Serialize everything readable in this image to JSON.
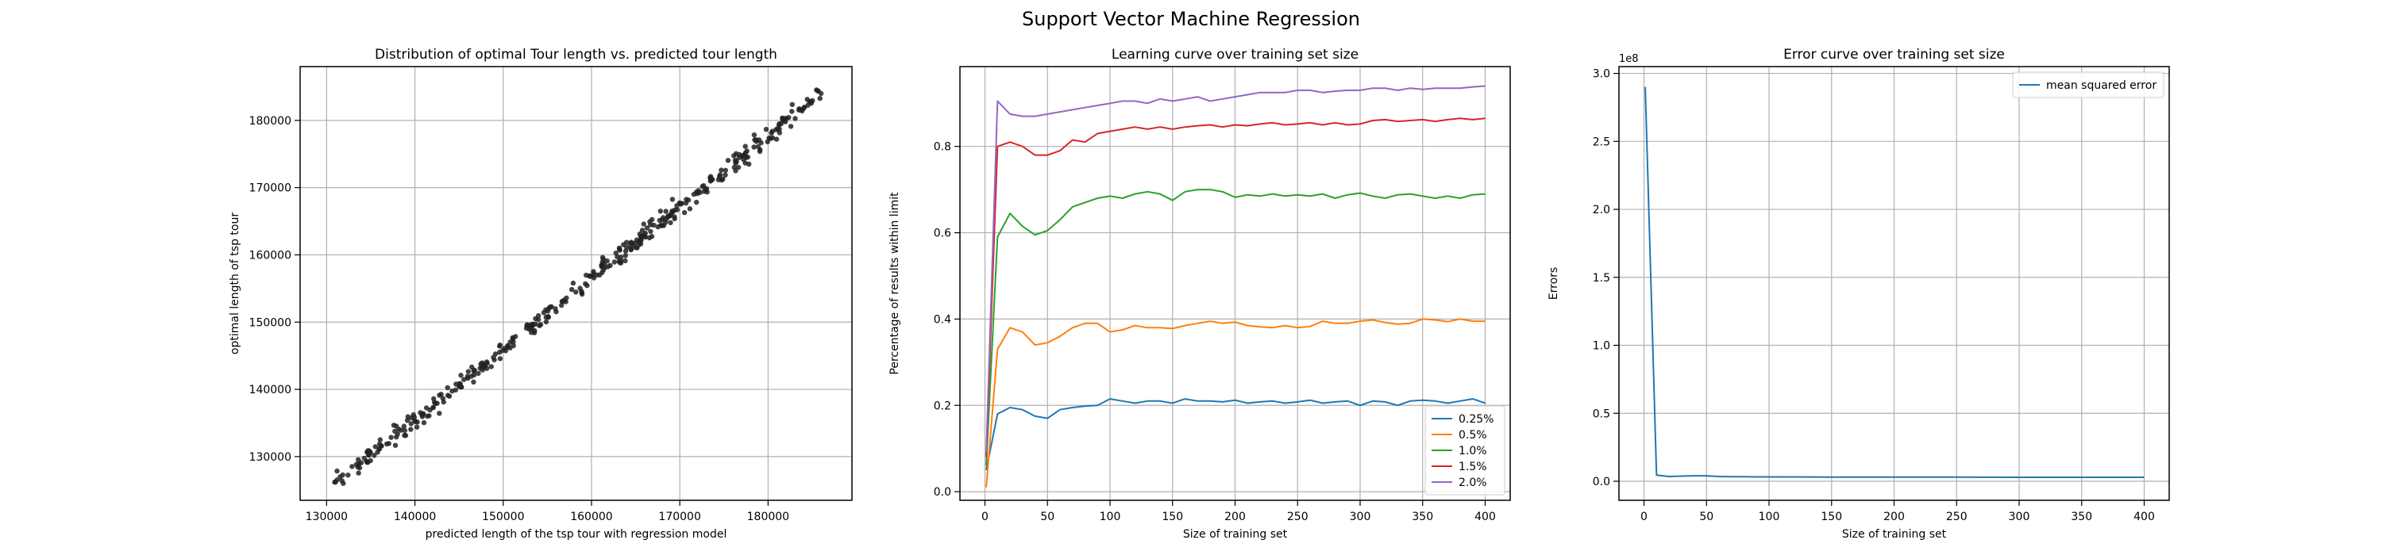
{
  "figure": {
    "suptitle": "Support Vector Machine Regression"
  },
  "colors": {
    "tab_blue": "#1f77b4",
    "tab_orange": "#ff7f0e",
    "tab_green": "#2ca02c",
    "tab_red": "#d62728",
    "tab_purple": "#9467bd",
    "scatter": "#222222",
    "grid": "#b0b0b0",
    "axes": "#000000"
  },
  "chart_data": [
    {
      "type": "scatter",
      "title": "Distribution of optimal Tour length vs. predicted tour length",
      "xlabel": "predicted length of the tsp tour with regression model",
      "ylabel": "optimal length of tsp tour",
      "xlim": [
        127000,
        189500
      ],
      "ylim": [
        123500,
        188000
      ],
      "xticks": [
        130000,
        140000,
        150000,
        160000,
        170000,
        180000
      ],
      "yticks": [
        130000,
        140000,
        150000,
        160000,
        170000,
        180000
      ],
      "grid": true,
      "trend": {
        "x0": 131000,
        "y0": 126000,
        "x1": 186000,
        "y1": 184000
      },
      "n_points": 400,
      "series": [
        {
          "color": "#222222"
        }
      ]
    },
    {
      "type": "line",
      "title": "Learning curve over training set size",
      "xlabel": "Size of training set",
      "ylabel": "Percentage of results within limit",
      "xlim": [
        -20,
        420
      ],
      "ylim": [
        -0.02,
        0.985
      ],
      "xticks": [
        0,
        50,
        100,
        150,
        200,
        250,
        300,
        350,
        400
      ],
      "yticks": [
        0.0,
        0.2,
        0.4,
        0.6,
        0.8
      ],
      "ytick_labels": [
        "0.0",
        "0.2",
        "0.4",
        "0.6",
        "0.8"
      ],
      "grid": true,
      "legend": "lower right",
      "x": [
        1,
        10,
        20,
        30,
        40,
        50,
        60,
        70,
        80,
        90,
        100,
        110,
        120,
        130,
        140,
        150,
        160,
        170,
        180,
        190,
        200,
        210,
        220,
        230,
        240,
        250,
        260,
        270,
        280,
        290,
        300,
        310,
        320,
        330,
        340,
        350,
        360,
        370,
        380,
        390,
        400
      ],
      "series": [
        {
          "name": "0.25%",
          "color": "#1f77b4",
          "values": [
            0.05,
            0.18,
            0.195,
            0.19,
            0.175,
            0.17,
            0.19,
            0.195,
            0.198,
            0.2,
            0.215,
            0.21,
            0.205,
            0.21,
            0.21,
            0.205,
            0.215,
            0.21,
            0.21,
            0.208,
            0.212,
            0.205,
            0.208,
            0.21,
            0.205,
            0.208,
            0.212,
            0.205,
            0.208,
            0.21,
            0.2,
            0.21,
            0.208,
            0.2,
            0.21,
            0.212,
            0.21,
            0.205,
            0.21,
            0.215,
            0.205
          ]
        },
        {
          "name": "0.5%",
          "color": "#ff7f0e",
          "values": [
            0.01,
            0.33,
            0.38,
            0.37,
            0.34,
            0.345,
            0.36,
            0.38,
            0.39,
            0.39,
            0.37,
            0.375,
            0.385,
            0.38,
            0.38,
            0.378,
            0.385,
            0.39,
            0.395,
            0.39,
            0.393,
            0.385,
            0.382,
            0.38,
            0.385,
            0.38,
            0.383,
            0.395,
            0.39,
            0.39,
            0.395,
            0.398,
            0.392,
            0.388,
            0.39,
            0.4,
            0.398,
            0.394,
            0.4,
            0.395,
            0.395
          ]
        },
        {
          "name": "1.0%",
          "color": "#2ca02c",
          "values": [
            0.06,
            0.59,
            0.645,
            0.615,
            0.595,
            0.605,
            0.63,
            0.66,
            0.67,
            0.68,
            0.685,
            0.68,
            0.69,
            0.695,
            0.69,
            0.675,
            0.695,
            0.7,
            0.7,
            0.695,
            0.682,
            0.688,
            0.685,
            0.69,
            0.685,
            0.688,
            0.685,
            0.69,
            0.68,
            0.688,
            0.692,
            0.685,
            0.68,
            0.688,
            0.69,
            0.685,
            0.68,
            0.685,
            0.68,
            0.688,
            0.69
          ]
        },
        {
          "name": "1.5%",
          "color": "#d62728",
          "values": [
            0.08,
            0.8,
            0.81,
            0.8,
            0.78,
            0.78,
            0.79,
            0.815,
            0.81,
            0.83,
            0.835,
            0.84,
            0.845,
            0.84,
            0.845,
            0.84,
            0.845,
            0.848,
            0.85,
            0.845,
            0.85,
            0.848,
            0.852,
            0.855,
            0.85,
            0.852,
            0.855,
            0.85,
            0.855,
            0.85,
            0.852,
            0.86,
            0.862,
            0.858,
            0.86,
            0.862,
            0.858,
            0.862,
            0.865,
            0.862,
            0.865
          ]
        },
        {
          "name": "2.0%",
          "color": "#9467bd",
          "values": [
            0.09,
            0.905,
            0.875,
            0.87,
            0.87,
            0.875,
            0.88,
            0.885,
            0.89,
            0.895,
            0.9,
            0.905,
            0.905,
            0.9,
            0.91,
            0.905,
            0.91,
            0.915,
            0.905,
            0.91,
            0.915,
            0.92,
            0.925,
            0.925,
            0.925,
            0.93,
            0.93,
            0.925,
            0.928,
            0.93,
            0.93,
            0.935,
            0.935,
            0.93,
            0.935,
            0.932,
            0.935,
            0.935,
            0.935,
            0.938,
            0.94
          ]
        }
      ]
    },
    {
      "type": "line",
      "title": "Error curve over training set size",
      "xlabel": "Size of training set",
      "ylabel": "Errors",
      "offset_text": "1e8",
      "xlim": [
        -20,
        420
      ],
      "ylim": [
        -0.14,
        3.05
      ],
      "xticks": [
        0,
        50,
        100,
        150,
        200,
        250,
        300,
        350,
        400
      ],
      "yticks": [
        0.0,
        0.5,
        1.0,
        1.5,
        2.0,
        2.5,
        3.0
      ],
      "ytick_labels": [
        "0.0",
        "0.5",
        "1.0",
        "1.5",
        "2.0",
        "2.5",
        "3.0"
      ],
      "grid": true,
      "legend": "upper right",
      "x": [
        1,
        10,
        20,
        30,
        40,
        50,
        60,
        70,
        80,
        90,
        100,
        150,
        200,
        250,
        300,
        350,
        400
      ],
      "series": [
        {
          "name": "mean squared error",
          "color": "#1f77b4",
          "values": [
            2.9,
            0.045,
            0.035,
            0.038,
            0.04,
            0.04,
            0.035,
            0.034,
            0.033,
            0.032,
            0.032,
            0.031,
            0.03,
            0.03,
            0.029,
            0.029,
            0.029
          ]
        }
      ]
    }
  ]
}
